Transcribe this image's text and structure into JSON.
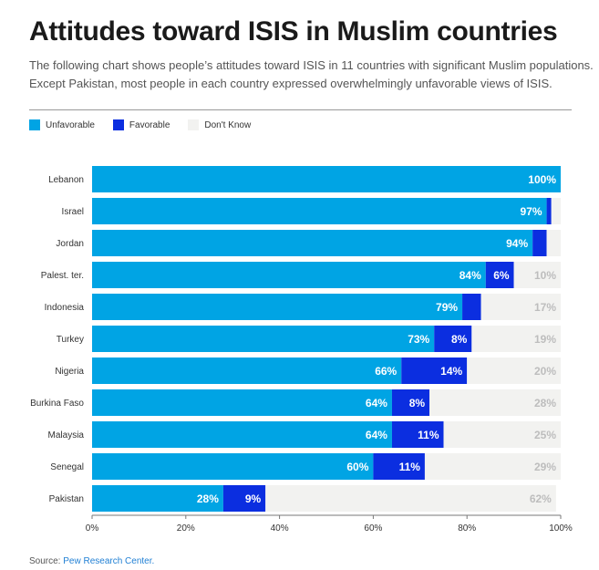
{
  "title": "Attitudes toward ISIS in Muslim countries",
  "subtitle": "The following chart shows people’s attitudes toward ISIS in 11 countries with significant Muslim populations. Except Pakistan, most people in each country expressed overwhelmingly unfavorable views of ISIS.",
  "legend": {
    "items": [
      {
        "label": "Unfavorable",
        "color": "#00a4e4"
      },
      {
        "label": "Favorable",
        "color": "#0b2ee0"
      },
      {
        "label": "Don't Know",
        "color": "#f2f2f0"
      }
    ]
  },
  "source": {
    "prefix": "Source: ",
    "link": "Pew Research Center."
  },
  "chart_data": {
    "type": "bar",
    "orientation": "horizontal",
    "stacked": true,
    "categories": [
      "Lebanon",
      "Israel",
      "Jordan",
      "Palest. ter.",
      "Indonesia",
      "Turkey",
      "Nigeria",
      "Burkina Faso",
      "Malaysia",
      "Senegal",
      "Pakistan"
    ],
    "series": [
      {
        "name": "Unfavorable",
        "color": "#00a4e4",
        "values": [
          100,
          97,
          94,
          84,
          79,
          73,
          66,
          64,
          64,
          60,
          28
        ]
      },
      {
        "name": "Favorable",
        "color": "#0b2ee0",
        "values": [
          0,
          1,
          3,
          6,
          4,
          8,
          14,
          8,
          11,
          11,
          9
        ]
      },
      {
        "name": "Don't Know",
        "color": "#f2f2f0",
        "values": [
          0,
          2,
          3,
          10,
          17,
          19,
          20,
          28,
          25,
          29,
          62
        ]
      }
    ],
    "data_labels": {
      "Unfavorable": [
        "100%",
        "97%",
        "94%",
        "84%",
        "79%",
        "73%",
        "66%",
        "64%",
        "64%",
        "60%",
        "28%"
      ],
      "Favorable": [
        "",
        "",
        "",
        "6%",
        "",
        "8%",
        "14%",
        "8%",
        "11%",
        "11%",
        "9%"
      ],
      "Don't Know": [
        "",
        "",
        "",
        "10%",
        "17%",
        "19%",
        "20%",
        "28%",
        "25%",
        "29%",
        "62%"
      ]
    },
    "xlim": [
      0,
      100
    ],
    "x_ticks": [
      0,
      20,
      40,
      60,
      80,
      100
    ],
    "x_tick_labels": [
      "0%",
      "20%",
      "40%",
      "60%",
      "80%",
      "100%"
    ],
    "grid": false,
    "legend_position": "top-left"
  }
}
